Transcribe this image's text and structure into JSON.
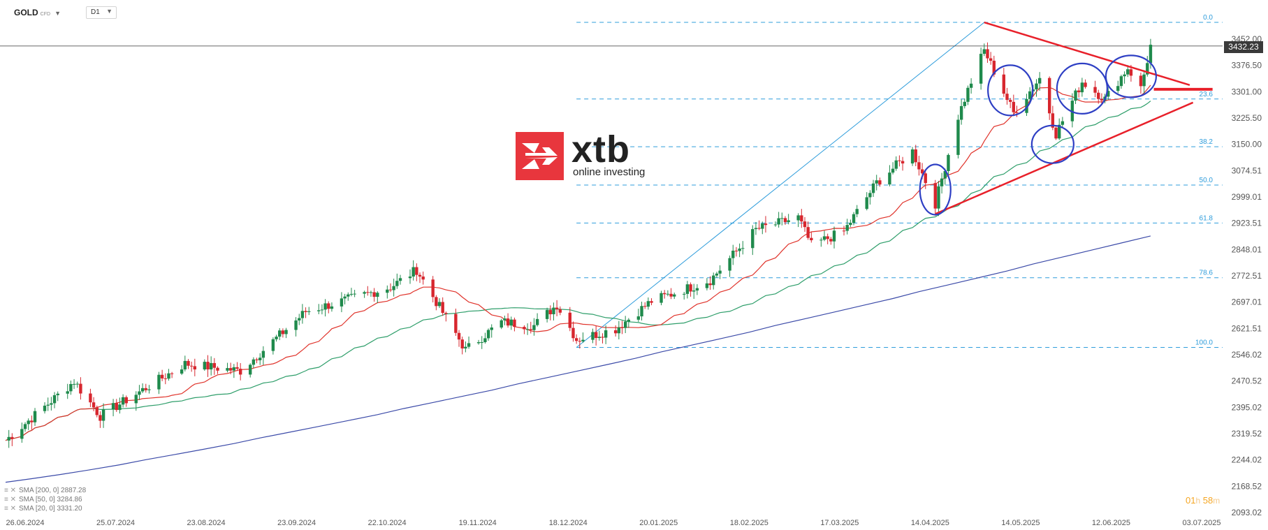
{
  "header": {
    "symbol": "GOLD",
    "symbol_type": "CFD",
    "timeframe": "D1"
  },
  "logo": {
    "brand": "xtb",
    "tagline": "online investing"
  },
  "price_tag": "3432.23",
  "timer": {
    "h": "01",
    "h_unit": "h",
    "m": "58",
    "m_unit": "m"
  },
  "legend": [
    {
      "label": "SMA [200, 0] 2887.28",
      "color": "#3b4aa8"
    },
    {
      "label": "SMA [50, 0] 3284.86",
      "color": "#2e9e6a"
    },
    {
      "label": "SMA [20, 0] 3331.20",
      "color": "#e0332b"
    }
  ],
  "colors": {
    "up": "#1f8a4c",
    "down": "#d7262e",
    "fib": "#2d9cdb",
    "trend": "#e8202a",
    "circle": "#2e3fc4",
    "sma200": "#3b4aa8",
    "sma50": "#2e9e6a",
    "sma20": "#e0332b"
  },
  "chart_data": {
    "type": "candlestick",
    "y_ticks": [
      "3452.00",
      "3376.50",
      "3301.00",
      "3225.50",
      "3150.00",
      "3074.51",
      "2999.01",
      "2923.51",
      "2848.01",
      "2772.51",
      "2697.01",
      "2621.51",
      "2546.02",
      "2470.52",
      "2395.02",
      "2319.52",
      "2244.02",
      "2168.52",
      "2093.02"
    ],
    "x_ticks": [
      "26.06.2024",
      "25.07.2024",
      "23.08.2024",
      "23.09.2024",
      "22.10.2024",
      "19.11.2024",
      "18.12.2024",
      "20.01.2025",
      "18.02.2025",
      "17.03.2025",
      "14.04.2025",
      "14.05.2025",
      "12.06.2025",
      "03.07.2025"
    ],
    "ylim": [
      2093.02,
      3452.0
    ],
    "fib_levels": [
      {
        "label": "0.0",
        "value": 3500
      },
      {
        "label": "23.6",
        "value": 3280
      },
      {
        "label": "38.2",
        "value": 3143
      },
      {
        "label": "50.0",
        "value": 3033
      },
      {
        "label": "61.8",
        "value": 2924
      },
      {
        "label": "78.6",
        "value": 2767
      },
      {
        "label": "100.0",
        "value": 2567
      }
    ],
    "last_price": 3432.23,
    "sma200_endpoints": [
      2180,
      2887
    ],
    "sma50_last": 3284.86,
    "sma20_last": 3331.2,
    "close_path": [
      [
        "2024-06-26",
        2300
      ],
      [
        "2024-07-17",
        2470
      ],
      [
        "2024-07-25",
        2370
      ],
      [
        "2024-08-20",
        2520
      ],
      [
        "2024-09-06",
        2500
      ],
      [
        "2024-09-26",
        2670
      ],
      [
        "2024-10-22",
        2740
      ],
      [
        "2024-10-30",
        2790
      ],
      [
        "2024-11-14",
        2560
      ],
      [
        "2024-11-25",
        2640
      ],
      [
        "2024-12-05",
        2630
      ],
      [
        "2024-12-12",
        2690
      ],
      [
        "2024-12-18",
        2590
      ],
      [
        "2024-12-30",
        2620
      ],
      [
        "2025-01-10",
        2700
      ],
      [
        "2025-01-28",
        2760
      ],
      [
        "2025-02-11",
        2905
      ],
      [
        "2025-02-24",
        2940
      ],
      [
        "2025-02-28",
        2860
      ],
      [
        "2025-03-10",
        2900
      ],
      [
        "2025-03-20",
        3040
      ],
      [
        "2025-03-31",
        3130
      ],
      [
        "2025-04-07",
        2980
      ],
      [
        "2025-04-14",
        3230
      ],
      [
        "2025-04-18",
        3330
      ],
      [
        "2025-04-22",
        3420
      ],
      [
        "2025-05-01",
        3240
      ],
      [
        "2025-05-09",
        3340
      ],
      [
        "2025-05-14",
        3180
      ],
      [
        "2025-05-22",
        3330
      ],
      [
        "2025-05-29",
        3280
      ],
      [
        "2025-06-05",
        3370
      ],
      [
        "2025-06-09",
        3310
      ],
      [
        "2025-06-12",
        3432
      ]
    ]
  }
}
